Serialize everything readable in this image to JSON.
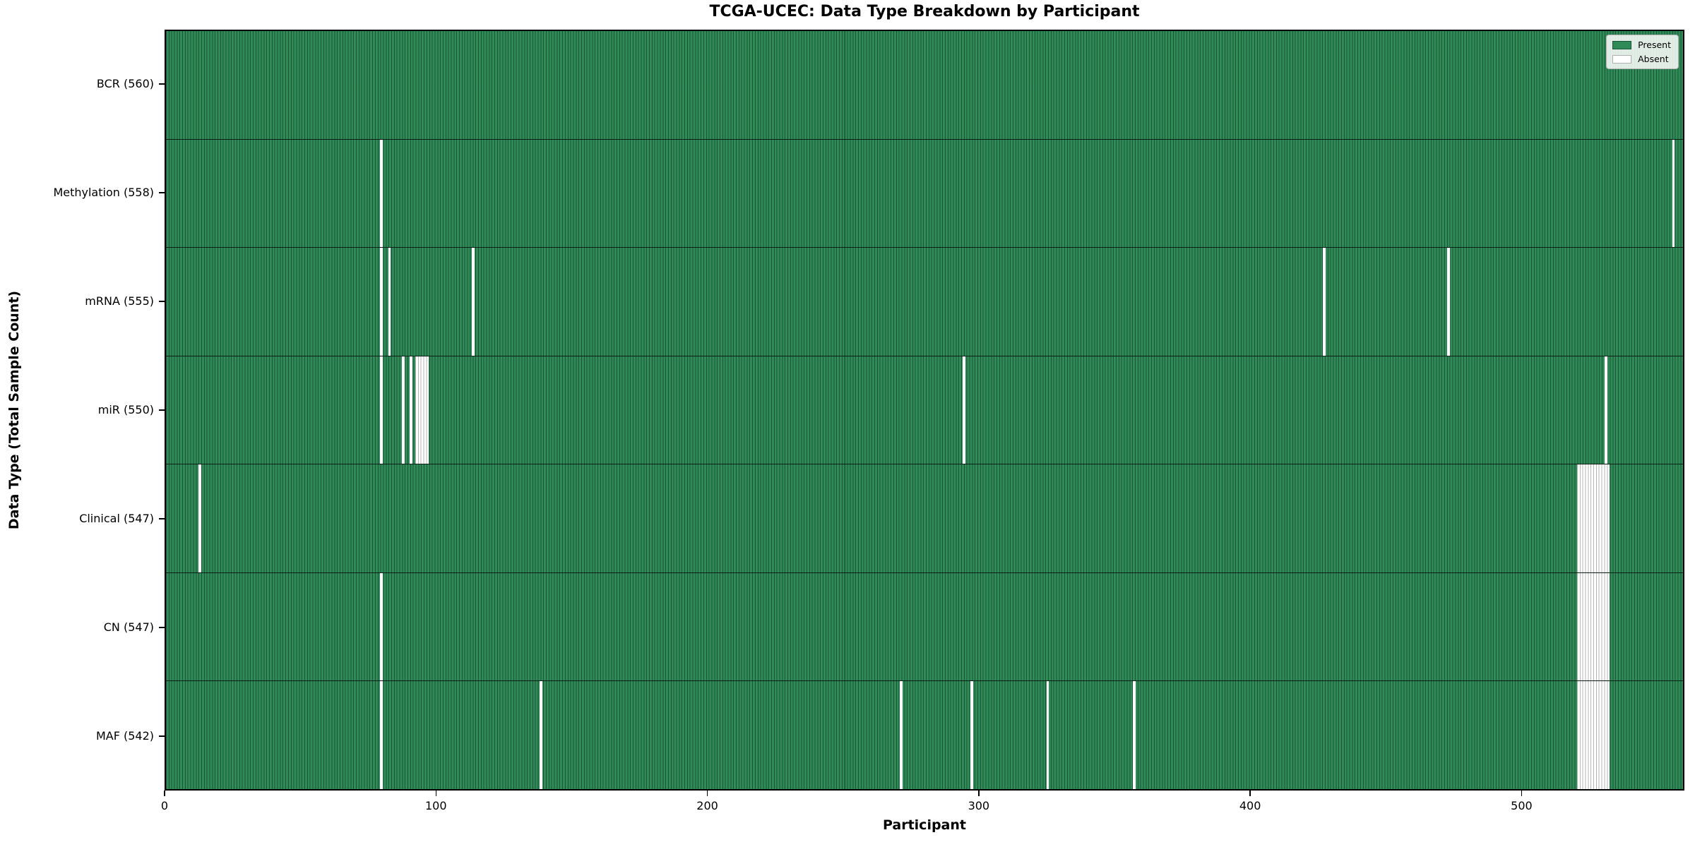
{
  "title": "TCGA-UCEC: Data Type Breakdown by Participant",
  "axes": {
    "xlabel": "Participant",
    "ylabel": "Data Type (Total Sample Count)"
  },
  "legend": {
    "present_label": "Present",
    "absent_label": "Absent",
    "position": "upper right"
  },
  "colors": {
    "present": "#2e8b57",
    "absent": "#ffffff",
    "bar_edge": "#1b5436",
    "spine": "#000000"
  },
  "chart_data": {
    "type": "heatmap",
    "title": "TCGA-UCEC: Data Type Breakdown by Participant",
    "xlabel": "Participant",
    "ylabel": "Data Type (Total Sample Count)",
    "xlim": [
      0,
      560
    ],
    "x_ticks": [
      0,
      100,
      200,
      300,
      400,
      500
    ],
    "total_participants": 560,
    "grid": false,
    "legend_entries": [
      "Present",
      "Absent"
    ],
    "categories": [
      "BCR (560)",
      "Methylation (558)",
      "mRNA (555)",
      "miR (550)",
      "Clinical (547)",
      "CN (547)",
      "MAF (542)"
    ],
    "values": [
      560,
      558,
      555,
      550,
      547,
      547,
      542
    ],
    "rows": [
      {
        "name": "BCR",
        "label": "BCR (560)",
        "count": 560,
        "absent_participants": []
      },
      {
        "name": "Methylation",
        "label": "Methylation (558)",
        "count": 558,
        "absent_participants": [
          79,
          556
        ]
      },
      {
        "name": "mRNA",
        "label": "mRNA (555)",
        "count": 555,
        "absent_participants": [
          79,
          82,
          113,
          427,
          473
        ]
      },
      {
        "name": "miR",
        "label": "miR (550)",
        "count": 550,
        "absent_participants": [
          79,
          87,
          90,
          92,
          93,
          94,
          95,
          96,
          294,
          531
        ]
      },
      {
        "name": "Clinical",
        "label": "Clinical (547)",
        "count": 547,
        "absent_participants": [
          12,
          521,
          522,
          523,
          524,
          525,
          526,
          527,
          528,
          529,
          530,
          531,
          532
        ]
      },
      {
        "name": "CN",
        "label": "CN (547)",
        "count": 547,
        "absent_participants": [
          79,
          521,
          522,
          523,
          524,
          525,
          526,
          527,
          528,
          529,
          530,
          531,
          532
        ]
      },
      {
        "name": "MAF",
        "label": "MAF (542)",
        "count": 542,
        "absent_participants": [
          79,
          138,
          271,
          297,
          325,
          357,
          521,
          522,
          523,
          524,
          525,
          526,
          527,
          528,
          529,
          530,
          531,
          532
        ]
      }
    ]
  }
}
